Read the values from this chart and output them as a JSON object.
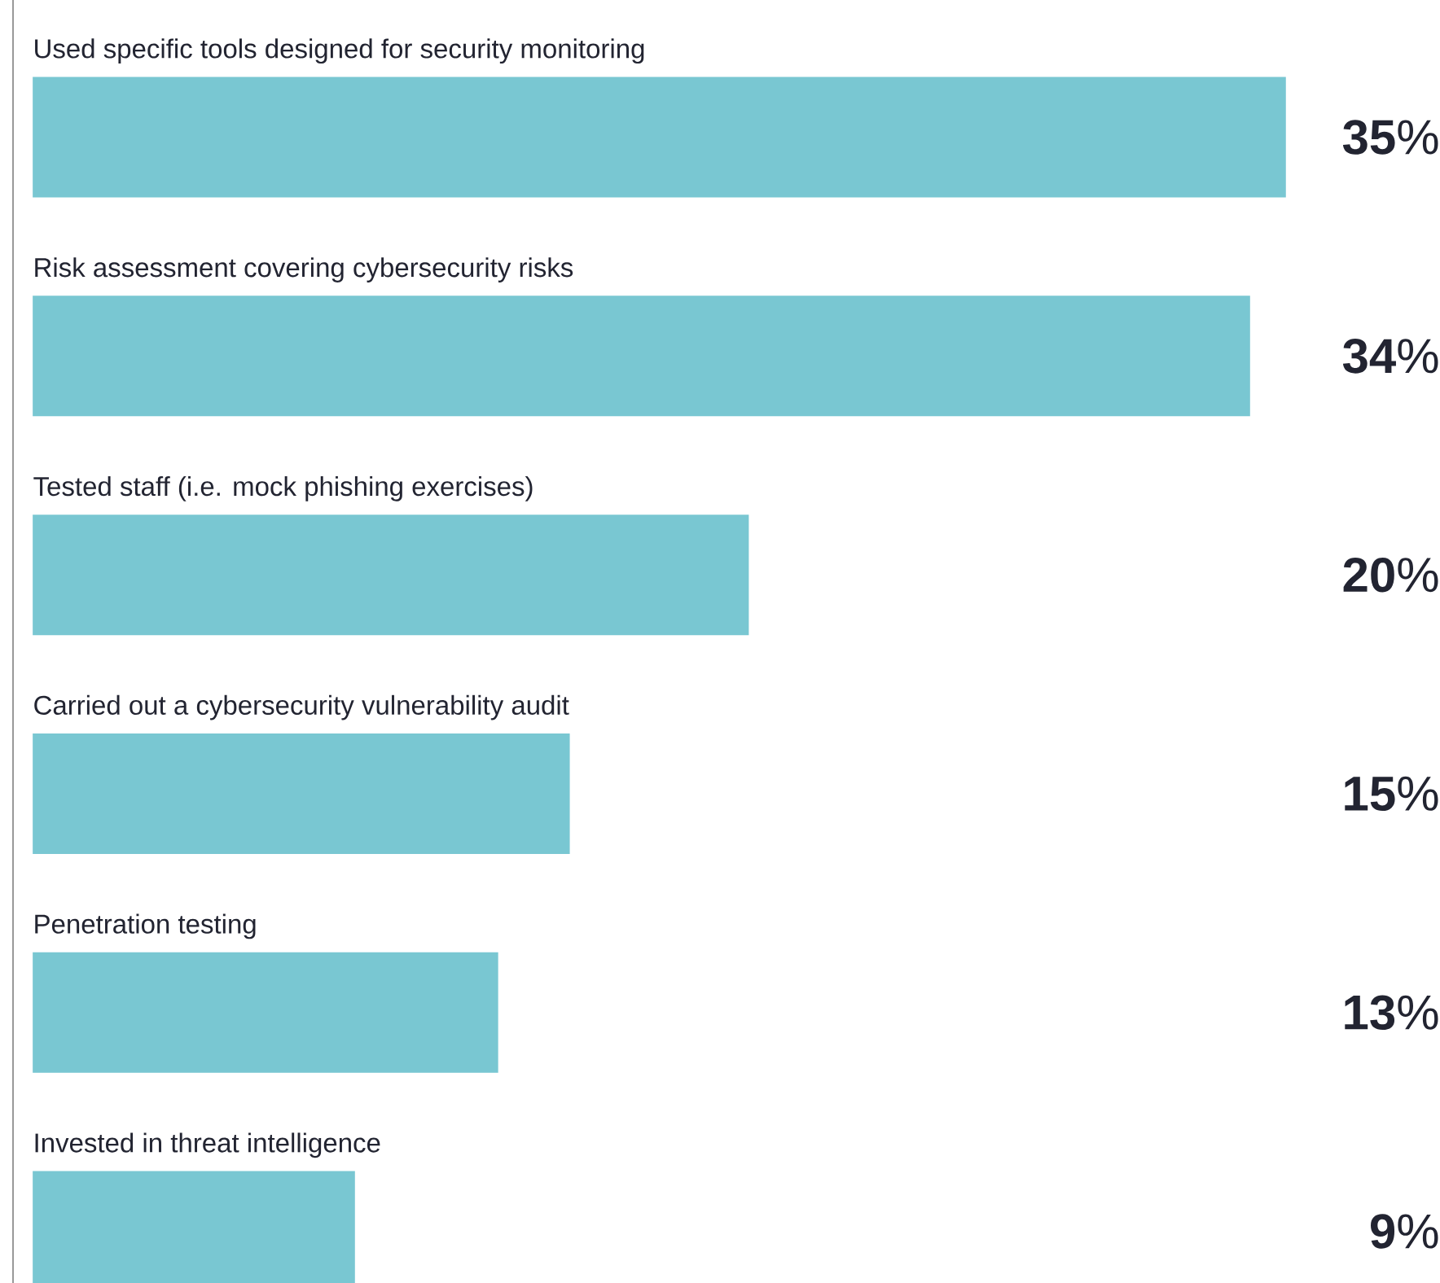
{
  "chart_data": {
    "type": "bar",
    "orientation": "horizontal",
    "categories": [
      "Used specific tools designed for security monitoring",
      "Risk assessment covering cybersecurity risks",
      "Tested staff (i.e. mock phishing exercises)",
      "Carried out a cybersecurity vulnerability audit",
      "Penetration testing",
      "Invested in threat intelligence"
    ],
    "values": [
      35,
      34,
      20,
      15,
      13,
      9
    ],
    "value_labels": [
      "**35**%",
      "**34**%",
      "**20**%",
      "**15**%",
      "**13**%",
      "**9**%"
    ],
    "color": "#79c7d2"
  }
}
